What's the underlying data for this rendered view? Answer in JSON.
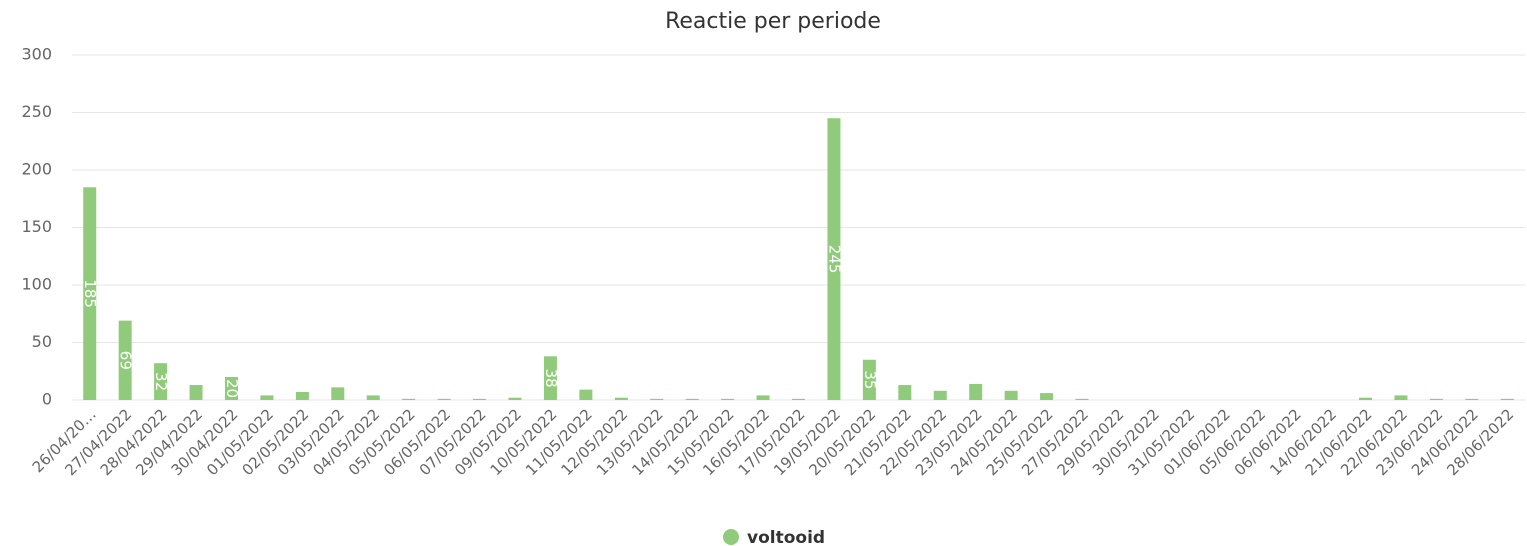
{
  "chart_data": {
    "type": "bar",
    "title": "Reactie per periode",
    "categories": [
      "26/04/20…",
      "27/04/2022",
      "28/04/2022",
      "29/04/2022",
      "30/04/2022",
      "01/05/2022",
      "02/05/2022",
      "03/05/2022",
      "04/05/2022",
      "05/05/2022",
      "06/05/2022",
      "07/05/2022",
      "09/05/2022",
      "10/05/2022",
      "11/05/2022",
      "12/05/2022",
      "13/05/2022",
      "14/05/2022",
      "15/05/2022",
      "16/05/2022",
      "17/05/2022",
      "19/05/2022",
      "20/05/2022",
      "21/05/2022",
      "22/05/2022",
      "23/05/2022",
      "24/05/2022",
      "25/05/2022",
      "27/05/2022",
      "29/05/2022",
      "30/05/2022",
      "31/05/2022",
      "01/06/2022",
      "05/06/2022",
      "06/06/2022",
      "14/06/2022",
      "21/06/2022",
      "22/06/2022",
      "23/06/2022",
      "24/06/2022",
      "28/06/2022"
    ],
    "series": [
      {
        "name": "voltooid",
        "color": "#8fcb7a",
        "values": [
          185,
          69,
          32,
          13,
          20,
          4,
          7,
          11,
          4,
          1,
          1,
          1,
          2,
          38,
          9,
          2,
          1,
          1,
          1,
          4,
          1,
          245,
          35,
          13,
          8,
          14,
          8,
          6,
          1,
          0,
          0,
          0,
          0,
          0,
          0,
          0,
          2,
          4,
          1,
          1,
          1
        ],
        "value_labels": [
          "185",
          "69",
          "32",
          null,
          "20",
          null,
          null,
          null,
          null,
          null,
          null,
          null,
          null,
          "38",
          null,
          null,
          null,
          null,
          null,
          null,
          null,
          "245",
          "35",
          null,
          null,
          null,
          null,
          null,
          null,
          null,
          null,
          null,
          null,
          null,
          null,
          null,
          null,
          null,
          null,
          null,
          null
        ]
      }
    ],
    "ylim": [
      0,
      300
    ],
    "yticks": [
      0,
      50,
      100,
      150,
      200,
      250,
      300
    ],
    "grid": true,
    "legend": "bottom"
  }
}
